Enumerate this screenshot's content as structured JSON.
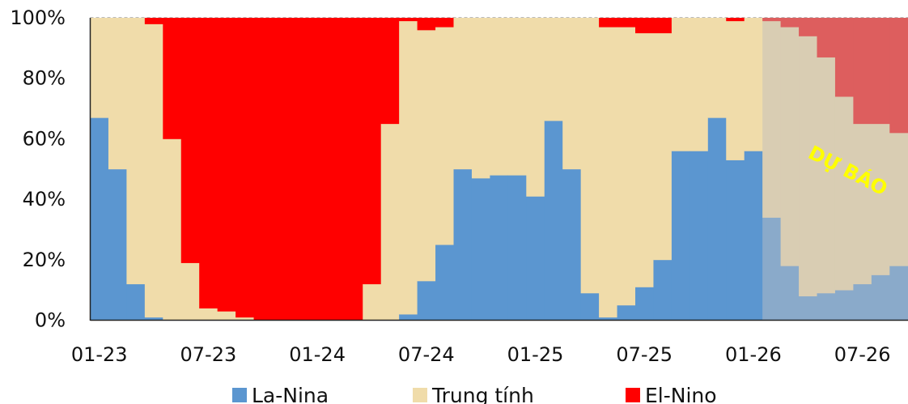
{
  "chart_data": {
    "type": "bar",
    "stacked": true,
    "percent_stacked": true,
    "x_tick_labels": [
      "01-23",
      "07-23",
      "01-24",
      "07-24",
      "01-25",
      "07-25",
      "01-26",
      "07-26"
    ],
    "first_month_index": 0,
    "y_tick_labels": [
      "0%",
      "20%",
      "40%",
      "60%",
      "80%",
      "100%"
    ],
    "ylim": [
      0,
      100
    ],
    "grid": false,
    "legend_position": "bottom",
    "annotation": "DỰ BÁO",
    "series": [
      {
        "name": "La-Nina",
        "color": "#5B96D0",
        "forecast_color": "#8AAACA",
        "values": [
          67,
          50,
          12,
          1,
          0,
          0,
          0,
          0,
          0,
          0,
          0,
          0,
          0,
          0,
          0,
          0,
          0,
          2,
          13,
          25,
          50,
          47,
          48,
          48,
          41,
          66,
          50,
          9,
          1,
          5,
          11,
          20,
          56,
          56,
          67,
          53,
          56,
          34,
          18,
          8,
          9,
          10,
          12,
          15,
          18
        ]
      },
      {
        "name": "Trung tính",
        "color": "#F0DCAA",
        "forecast_color": "#D9CDB3",
        "values": [
          33,
          50,
          88,
          97,
          60,
          19,
          4,
          3,
          1,
          0,
          0,
          0,
          0,
          0,
          0,
          12,
          65,
          97,
          83,
          72,
          50,
          53,
          52,
          52,
          59,
          34,
          50,
          91,
          96,
          92,
          84,
          75,
          44,
          44,
          33,
          46,
          44,
          65,
          79,
          86,
          78,
          64,
          53,
          50,
          44
        ]
      },
      {
        "name": "El-Nino",
        "color": "#FF0000",
        "forecast_color": "#DD5E5E",
        "values": [
          0,
          0,
          0,
          2,
          40,
          81,
          96,
          97,
          99,
          100,
          100,
          100,
          100,
          100,
          100,
          88,
          35,
          1,
          4,
          3,
          0,
          0,
          0,
          0,
          0,
          0,
          0,
          0,
          3,
          3,
          5,
          5,
          0,
          0,
          0,
          1,
          0,
          1,
          3,
          6,
          13,
          26,
          35,
          35,
          38
        ]
      }
    ],
    "forecast_start_index": 37
  }
}
